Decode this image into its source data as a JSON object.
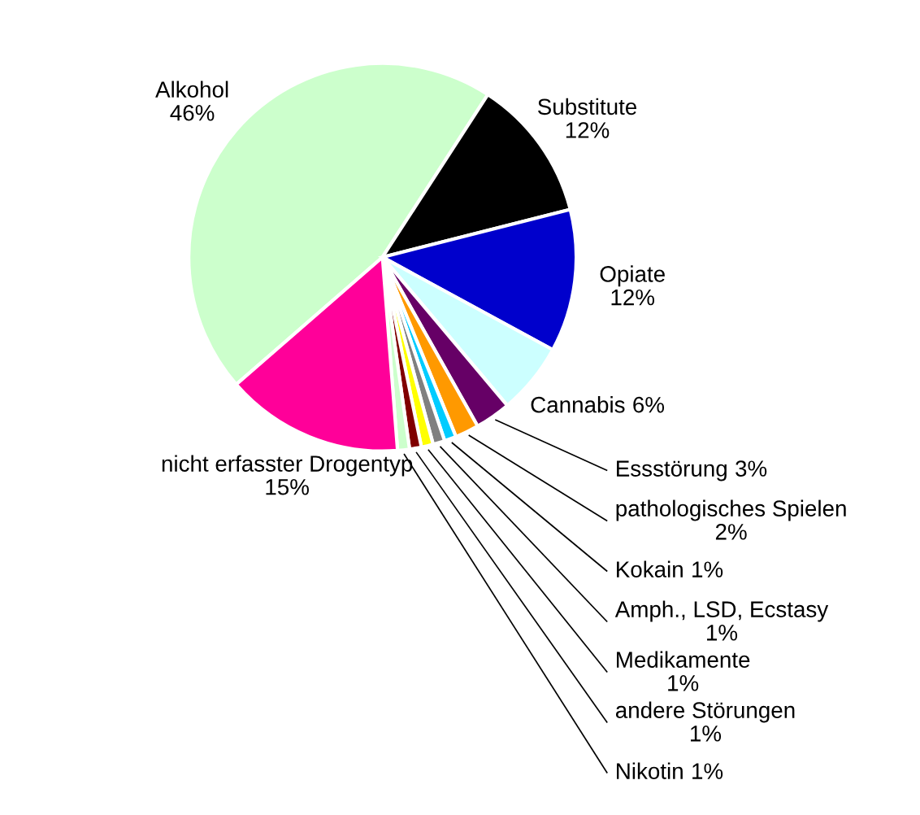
{
  "chart_data": {
    "type": "pie",
    "categories": [
      "Alkohol",
      "Substitute",
      "Opiate",
      "Cannabis",
      "Essstörung",
      "pathologisches Spielen",
      "Kokain",
      "Amph., LSD, Ecstasy",
      "Medikamente",
      "andere Störungen",
      "Nikotin",
      "nicht erfasster Drogentyp"
    ],
    "values": [
      46,
      12,
      12,
      6,
      3,
      2,
      1,
      1,
      1,
      1,
      1,
      15
    ],
    "value_labels": [
      "46%",
      "12%",
      "12%",
      "6%",
      "3%",
      "2%",
      "1%",
      "1%",
      "1%",
      "1%",
      "1%",
      "15%"
    ],
    "colors": [
      "#ccffcc",
      "#000000",
      "#0000cc",
      "#ccffff",
      "#660066",
      "#ff9900",
      "#00ccff",
      "#808080",
      "#ffff00",
      "#800000",
      "#ccffcc",
      "#ff0099"
    ],
    "legend": false
  }
}
